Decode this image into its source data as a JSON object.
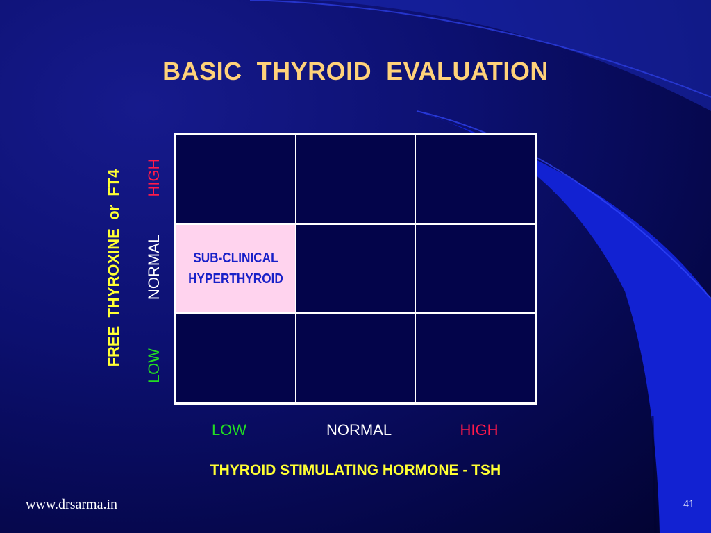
{
  "slide": {
    "title": "BASIC  THYROID  EVALUATION",
    "footer_url": "www.drsarma.in",
    "slide_number": "41"
  },
  "colors": {
    "low": "#22dd22",
    "normal": "#ffffff",
    "high": "#ff1a4a",
    "axis_title": "#ffff33",
    "highlight_cell": "#ffd3ee",
    "cell_text": "#1820c8"
  },
  "y_axis": {
    "title": "FREE  THYROXINE  or  FT4",
    "levels": {
      "high": "HIGH",
      "normal": "NORMAL",
      "low": "LOW"
    }
  },
  "x_axis": {
    "title": "THYROID STIMULATING HORMONE - TSH",
    "levels": {
      "low": "LOW",
      "normal": "NORMAL",
      "high": "HIGH"
    }
  },
  "grid": {
    "rows": [
      [
        "",
        "",
        ""
      ],
      [
        [
          "SUB-CLINICAL",
          "HYPERTHYROID"
        ],
        "",
        ""
      ],
      [
        "",
        "",
        ""
      ]
    ]
  }
}
